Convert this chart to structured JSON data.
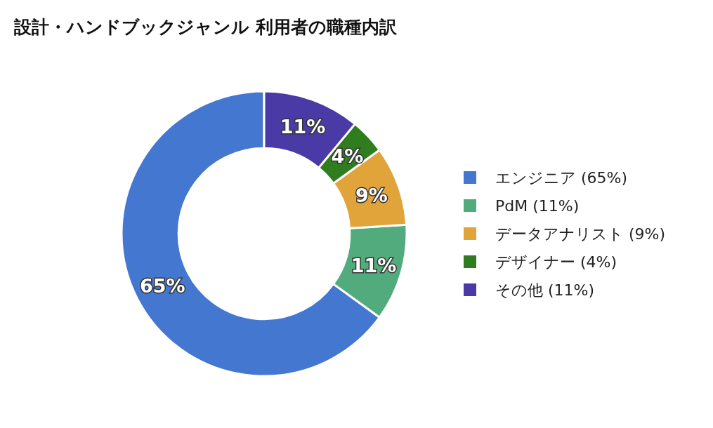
{
  "chart_data": {
    "type": "donut",
    "title": "設計・ハンドブックジャンル 利用者の職種内訳",
    "categories": [
      "エンジニア (65%)",
      "PdM (11%)",
      "データアナリスト (9%)",
      "デザイナー (4%)",
      "その他 (11%)"
    ],
    "values": [
      65,
      11,
      9,
      4,
      11
    ],
    "colors": [
      "#4477d0",
      "#52ab7c",
      "#e0a43a",
      "#2f7d1f",
      "#4a3aa6"
    ],
    "value_labels": [
      "65%",
      "11%",
      "9%",
      "4%",
      "11%"
    ],
    "legend": "right"
  }
}
